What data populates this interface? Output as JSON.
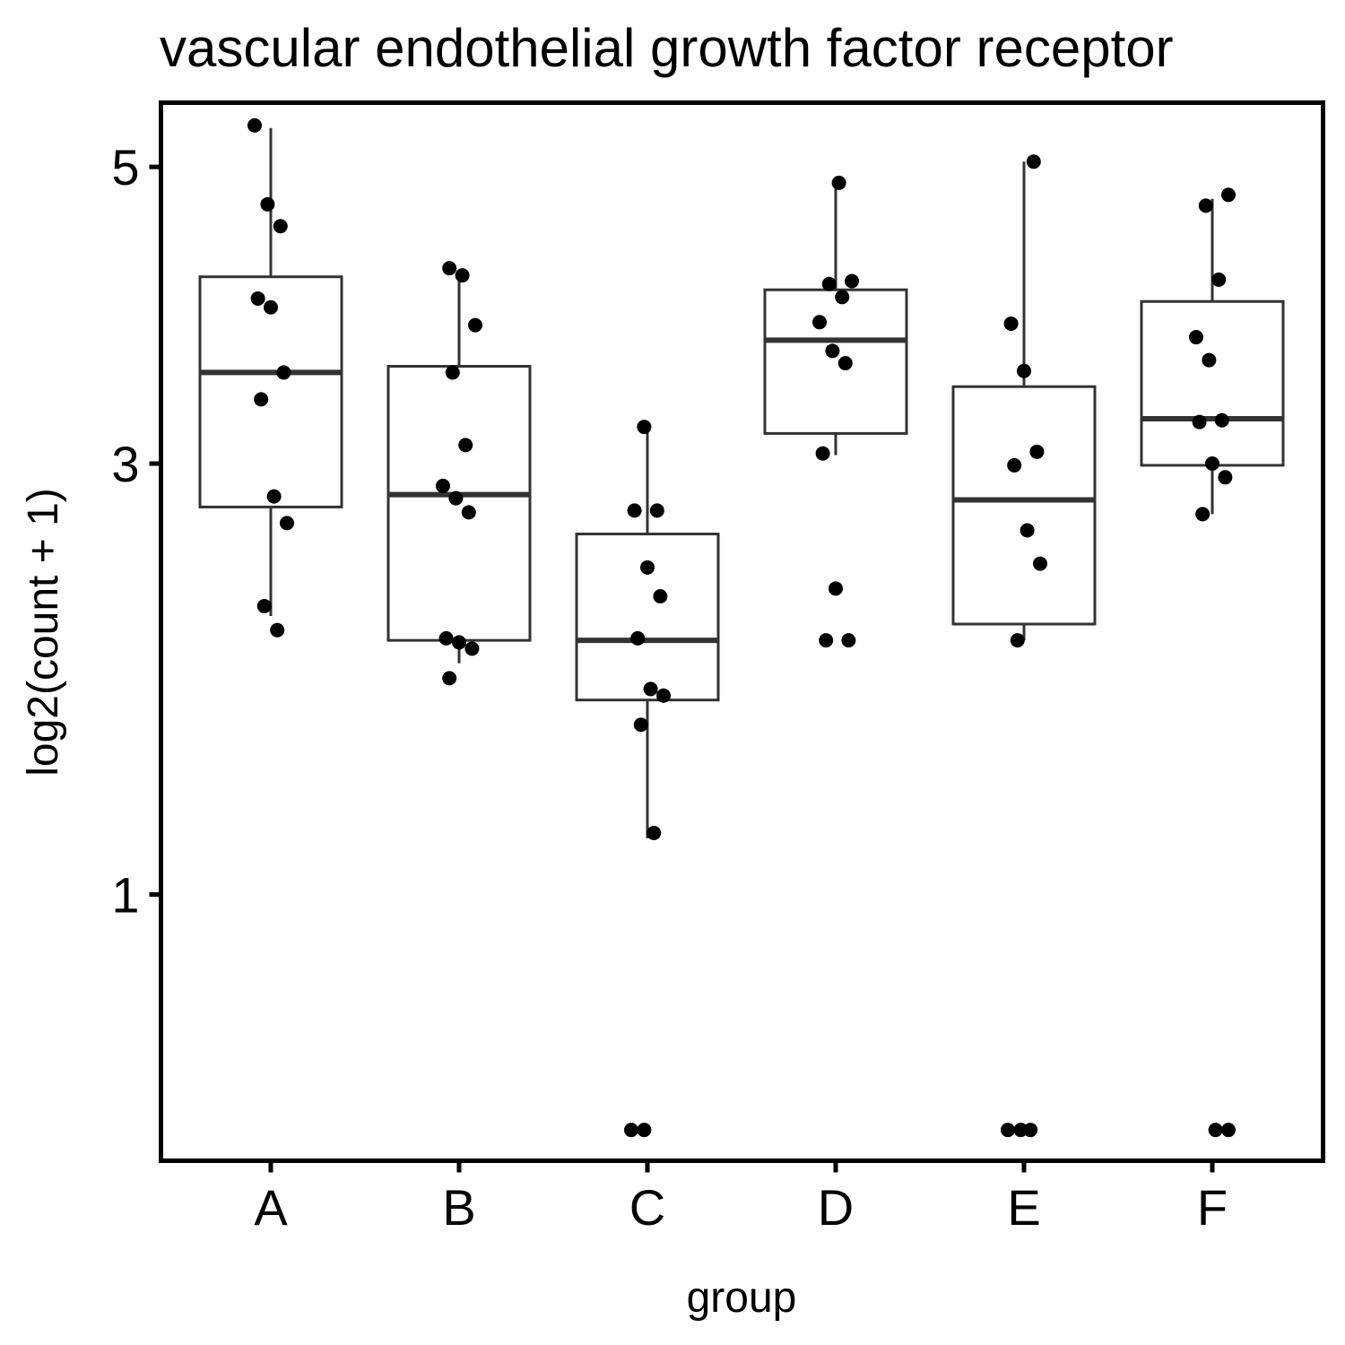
{
  "chart_data": {
    "type": "boxplot",
    "title": "vascular endothelial growth factor receptor",
    "xlabel": "group",
    "ylabel": "log2(count + 1)",
    "y_scale": "sqrt",
    "ylim": [
      0.3,
      5.5
    ],
    "yticks": [
      1,
      3,
      5
    ],
    "grid": false,
    "legend": "none",
    "categories": [
      "A",
      "B",
      "C",
      "D",
      "E",
      "F"
    ],
    "boxes": [
      {
        "group": "A",
        "whisker_low": 2.17,
        "q1": 2.75,
        "median": 3.56,
        "q3": 4.2,
        "whisker_high": 5.3
      },
      {
        "group": "B",
        "whisker_low": 1.94,
        "q1": 2.05,
        "median": 2.82,
        "q3": 3.6,
        "whisker_high": 4.25
      },
      {
        "group": "C",
        "whisker_low": 1.2,
        "q1": 1.77,
        "median": 2.05,
        "q3": 2.6,
        "whisker_high": 3.2
      },
      {
        "group": "D",
        "whisker_low": 3.05,
        "q1": 3.18,
        "median": 3.77,
        "q3": 4.11,
        "whisker_high": 4.88
      },
      {
        "group": "E",
        "whisker_low": 2.05,
        "q1": 2.13,
        "median": 2.79,
        "q3": 3.47,
        "whisker_high": 5.04
      },
      {
        "group": "F",
        "whisker_low": 2.71,
        "q1": 2.99,
        "median": 3.27,
        "q3": 4.03,
        "whisker_high": 4.76
      }
    ],
    "points": [
      {
        "group": "A",
        "values": [
          5.32,
          4.72,
          4.56,
          4.05,
          3.99,
          3.56,
          3.39,
          2.81,
          2.66,
          2.22,
          2.1
        ]
      },
      {
        "group": "B",
        "values": [
          4.26,
          4.21,
          3.87,
          3.56,
          3.11,
          2.87,
          2.8,
          2.72,
          2.06,
          2.04,
          2.01,
          1.87
        ]
      },
      {
        "group": "C",
        "values": [
          3.22,
          2.73,
          2.73,
          2.42,
          2.27,
          2.06,
          1.82,
          1.79,
          1.66,
          1.22,
          0.36,
          0.36
        ]
      },
      {
        "group": "D",
        "values": [
          4.88,
          4.17,
          4.15,
          4.06,
          3.89,
          3.7,
          3.62,
          3.06,
          2.31,
          2.05,
          2.05
        ]
      },
      {
        "group": "E",
        "values": [
          5.04,
          3.88,
          3.57,
          3.07,
          2.99,
          2.62,
          2.44,
          2.05,
          0.36,
          0.36,
          0.36
        ]
      },
      {
        "group": "F",
        "values": [
          4.79,
          4.71,
          4.18,
          3.79,
          3.64,
          3.26,
          3.25,
          3.0,
          2.92,
          2.71,
          0.36,
          0.36
        ]
      }
    ],
    "colors": {
      "box_line": "#333333",
      "median_line": "#333333",
      "point": "#000000",
      "axis": "#000000"
    }
  }
}
